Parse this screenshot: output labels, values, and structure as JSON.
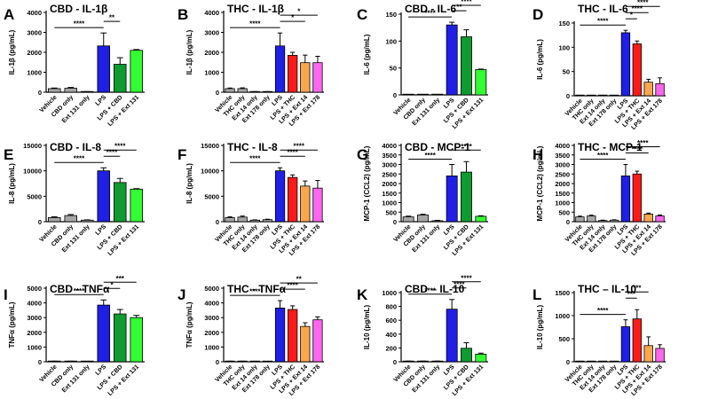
{
  "figure": {
    "description_free": true
  },
  "chart_data": [
    {
      "panel_letter": "A",
      "type": "bar",
      "title": "CBD - IL-1β",
      "ylabel": "IL-1β (pg/mL)",
      "ylim": [
        0,
        4000
      ],
      "yticks": [
        "0",
        "1000",
        "2000",
        "3000",
        "4000"
      ],
      "ytick_values": [
        0,
        1000,
        2000,
        3000,
        4000
      ],
      "categories": [
        "Vehicle",
        "CBD only",
        "Ext 131 only",
        "LPS",
        "LPS + CBD",
        "LPS + Ext 131"
      ],
      "values": [
        180,
        200,
        20,
        2320,
        1400,
        2100
      ],
      "errors": [
        30,
        40,
        10,
        650,
        330,
        40
      ],
      "colors": [
        "#a6a6a6",
        "#a6a6a6",
        "#a6a6a6",
        "#1f1fe6",
        "#0e9b2f",
        "#33ff33"
      ],
      "significance": [
        {
          "from": 0,
          "to": 3,
          "label": "****"
        },
        {
          "from": 3,
          "to": 4,
          "label": "**"
        }
      ]
    },
    {
      "panel_letter": "B",
      "type": "bar",
      "title": "THC - IL-1β",
      "ylabel": "IL-1β (pg/mL)",
      "ylim": [
        0,
        4000
      ],
      "yticks": [
        "0",
        "1000",
        "2000",
        "3000",
        "4000"
      ],
      "ytick_values": [
        0,
        1000,
        2000,
        3000,
        4000
      ],
      "categories": [
        "Vehicle",
        "THC only",
        "Ext 14 only",
        "Ext 178 only",
        "LPS",
        "LPS + THC",
        "LPS + Ext 14",
        "LPS + Ext 178"
      ],
      "values": [
        180,
        180,
        20,
        20,
        2320,
        1850,
        1480,
        1480
      ],
      "errors": [
        30,
        40,
        10,
        10,
        650,
        150,
        380,
        320
      ],
      "colors": [
        "#a6a6a6",
        "#a6a6a6",
        "#a6a6a6",
        "#a6a6a6",
        "#1f1fe6",
        "#ff1a1a",
        "#ffa64d",
        "#ff66ee"
      ],
      "significance": [
        {
          "from": 0,
          "to": 4,
          "label": "****"
        },
        {
          "from": 4,
          "to": 6,
          "label": "*"
        },
        {
          "from": 4,
          "to": 7,
          "label": "*"
        }
      ]
    },
    {
      "panel_letter": "C",
      "type": "bar",
      "title": "CBD - IL-6",
      "ylabel": "IL-6 (pg/mL)",
      "ylim": [
        0,
        150
      ],
      "yticks": [
        "0",
        "50",
        "100",
        "150"
      ],
      "ytick_values": [
        0,
        50,
        100,
        150
      ],
      "categories": [
        "Vehicle",
        "CBD only",
        "Ext 131 only",
        "LPS",
        "LPS + CBD",
        "LPS + Ext 131"
      ],
      "values": [
        0.5,
        0.5,
        0.5,
        130,
        108,
        47
      ],
      "errors": [
        0,
        0,
        0,
        5,
        13,
        1
      ],
      "colors": [
        "#a6a6a6",
        "#a6a6a6",
        "#a6a6a6",
        "#1f1fe6",
        "#0e9b2f",
        "#33ff33"
      ],
      "significance": [
        {
          "from": 0,
          "to": 3,
          "label": "****"
        },
        {
          "from": 3,
          "to": 4,
          "label": "**"
        },
        {
          "from": 3,
          "to": 5,
          "label": "****"
        }
      ]
    },
    {
      "panel_letter": "D",
      "type": "bar",
      "title": "THC - IL-6",
      "ylabel": "IL-6 (pg/mL)",
      "ylim": [
        0,
        150
      ],
      "yticks": [
        "0",
        "50",
        "100",
        "150"
      ],
      "ytick_values": [
        0,
        50,
        100,
        150
      ],
      "categories": [
        "Vehicle",
        "THC only",
        "Ext 14 only",
        "Ext 178 only",
        "LPS",
        "LPS + THC",
        "LPS + Ext 14",
        "LPS + Ext 178"
      ],
      "values": [
        0.5,
        0.5,
        0.5,
        0.5,
        130,
        107,
        28,
        25
      ],
      "errors": [
        0,
        0,
        0,
        0,
        5,
        6,
        6,
        12
      ],
      "colors": [
        "#a6a6a6",
        "#a6a6a6",
        "#a6a6a6",
        "#a6a6a6",
        "#1f1fe6",
        "#ff1a1a",
        "#ffa64d",
        "#ff66ee"
      ],
      "significance": [
        {
          "from": 0,
          "to": 4,
          "label": "****"
        },
        {
          "from": 4,
          "to": 5,
          "label": "*"
        },
        {
          "from": 4,
          "to": 6,
          "label": "****"
        },
        {
          "from": 4,
          "to": 7,
          "label": "****"
        }
      ]
    },
    {
      "panel_letter": "E",
      "type": "bar",
      "title": "CBD - IL-8",
      "ylabel": "IL-8 (pg/mL)",
      "ylim": [
        0,
        15000
      ],
      "yticks": [
        "0",
        "5000",
        "10000",
        "15000"
      ],
      "ytick_values": [
        0,
        5000,
        10000,
        15000
      ],
      "categories": [
        "Vehicle",
        "CBD only",
        "Ext 131 only",
        "LPS",
        "LPS + CBD",
        "LPS + Ext 131"
      ],
      "values": [
        800,
        1200,
        300,
        10000,
        7700,
        6400
      ],
      "errors": [
        150,
        200,
        60,
        600,
        800,
        100
      ],
      "colors": [
        "#a6a6a6",
        "#a6a6a6",
        "#a6a6a6",
        "#1f1fe6",
        "#0e9b2f",
        "#33ff33"
      ],
      "significance": [
        {
          "from": 0,
          "to": 3,
          "label": "****"
        },
        {
          "from": 3,
          "to": 4,
          "label": "****"
        },
        {
          "from": 3,
          "to": 5,
          "label": "****"
        }
      ]
    },
    {
      "panel_letter": "F",
      "type": "bar",
      "title": "THC - IL-8",
      "ylabel": "IL-8 (pg/mL)",
      "ylim": [
        0,
        15000
      ],
      "yticks": [
        "0",
        "5000",
        "10000",
        "15000"
      ],
      "ytick_values": [
        0,
        5000,
        10000,
        15000
      ],
      "categories": [
        "Vehicle",
        "THC only",
        "Ext 14 only",
        "Ext 178 only",
        "LPS",
        "LPS + THC",
        "LPS + Ext 14",
        "LPS + Ext 178"
      ],
      "values": [
        800,
        900,
        300,
        400,
        10000,
        8700,
        7000,
        6600
      ],
      "errors": [
        150,
        200,
        60,
        80,
        600,
        500,
        1000,
        1500
      ],
      "colors": [
        "#a6a6a6",
        "#a6a6a6",
        "#a6a6a6",
        "#a6a6a6",
        "#1f1fe6",
        "#ff1a1a",
        "#ffa64d",
        "#ff66ee"
      ],
      "significance": [
        {
          "from": 0,
          "to": 4,
          "label": "****"
        },
        {
          "from": 4,
          "to": 6,
          "label": "****"
        },
        {
          "from": 4,
          "to": 7,
          "label": "****"
        }
      ]
    },
    {
      "panel_letter": "G",
      "type": "bar",
      "title": "CBD - MCP-1",
      "ylabel": "MCP-1 (CCL2) (pg/mL)",
      "ylim": [
        0,
        4000
      ],
      "yticks": [
        "0",
        "500",
        "1000",
        "1500",
        "2000",
        "2500",
        "3000",
        "3500",
        "4000"
      ],
      "ytick_values": [
        0,
        500,
        1000,
        1500,
        2000,
        2500,
        3000,
        3500,
        4000
      ],
      "categories": [
        "Vehicle",
        "CBD only",
        "Ext 131 only",
        "LPS",
        "LPS + CBD",
        "LPS + Ext 131"
      ],
      "values": [
        250,
        350,
        50,
        2400,
        2600,
        280
      ],
      "errors": [
        40,
        40,
        20,
        600,
        550,
        30
      ],
      "colors": [
        "#a6a6a6",
        "#a6a6a6",
        "#a6a6a6",
        "#1f1fe6",
        "#0e9b2f",
        "#33ff33"
      ],
      "significance": [
        {
          "from": 0,
          "to": 3,
          "label": "****"
        },
        {
          "from": 3,
          "to": 5,
          "label": "****"
        }
      ]
    },
    {
      "panel_letter": "H",
      "type": "bar",
      "title": "THC - MCP-1",
      "ylabel": "MCP-1 (CCL2) (pg/mL)",
      "ylim": [
        0,
        4000
      ],
      "yticks": [
        "0",
        "500",
        "1000",
        "1500",
        "2000",
        "2500",
        "3000",
        "3500",
        "4000"
      ],
      "ytick_values": [
        0,
        500,
        1000,
        1500,
        2000,
        2500,
        3000,
        3500,
        4000
      ],
      "categories": [
        "Vehicle",
        "THC only",
        "Ext 14 only",
        "Ext 178 only",
        "LPS",
        "LPS + THC",
        "LPS + Ext 14",
        "LPS + Ext 178"
      ],
      "values": [
        250,
        300,
        60,
        80,
        2400,
        2500,
        400,
        300
      ],
      "errors": [
        40,
        40,
        20,
        20,
        600,
        150,
        50,
        50
      ],
      "colors": [
        "#a6a6a6",
        "#a6a6a6",
        "#a6a6a6",
        "#a6a6a6",
        "#1f1fe6",
        "#ff1a1a",
        "#ffa64d",
        "#ff66ee"
      ],
      "significance": [
        {
          "from": 0,
          "to": 4,
          "label": "****"
        },
        {
          "from": 4,
          "to": 6,
          "label": "****"
        },
        {
          "from": 4,
          "to": 7,
          "label": "****"
        }
      ]
    },
    {
      "panel_letter": "I",
      "type": "bar",
      "title": "CBD - TNFα",
      "ylabel": "TNFα (pg/mL)",
      "ylim": [
        0,
        5000
      ],
      "yticks": [
        "0",
        "1000",
        "2000",
        "3000",
        "4000",
        "5000"
      ],
      "ytick_values": [
        0,
        1000,
        2000,
        3000,
        4000,
        5000
      ],
      "categories": [
        "Vehicle",
        "CBD only",
        "Ext 131 only",
        "LPS",
        "LPS + CBD",
        "LPS + Ext 131"
      ],
      "values": [
        30,
        30,
        20,
        3850,
        3250,
        3000
      ],
      "errors": [
        10,
        10,
        10,
        350,
        300,
        150
      ],
      "colors": [
        "#a6a6a6",
        "#a6a6a6",
        "#a6a6a6",
        "#1f1fe6",
        "#0e9b2f",
        "#33ff33"
      ],
      "significance": [
        {
          "from": 0,
          "to": 3,
          "label": "****"
        },
        {
          "from": 3,
          "to": 4,
          "label": "*"
        },
        {
          "from": 3,
          "to": 5,
          "label": "***"
        }
      ]
    },
    {
      "panel_letter": "J",
      "type": "bar",
      "title": "THC - TNFα",
      "ylabel": "TNFα (pg/mL)",
      "ylim": [
        0,
        5000
      ],
      "yticks": [
        "0",
        "1000",
        "2000",
        "3000",
        "4000",
        "5000"
      ],
      "ytick_values": [
        0,
        1000,
        2000,
        3000,
        4000,
        5000
      ],
      "categories": [
        "Vehicle",
        "THC only",
        "Ext 14 only",
        "Ext 178 only",
        "LPS",
        "LPS + THC",
        "LPS + Ext 14",
        "LPS + Ext 178"
      ],
      "values": [
        30,
        30,
        20,
        20,
        3650,
        3550,
        2400,
        2850
      ],
      "errors": [
        10,
        10,
        10,
        10,
        500,
        250,
        250,
        200
      ],
      "colors": [
        "#a6a6a6",
        "#a6a6a6",
        "#a6a6a6",
        "#a6a6a6",
        "#1f1fe6",
        "#ff1a1a",
        "#ffa64d",
        "#ff66ee"
      ],
      "significance": [
        {
          "from": 0,
          "to": 4,
          "label": "****"
        },
        {
          "from": 4,
          "to": 6,
          "label": "****"
        },
        {
          "from": 4,
          "to": 7,
          "label": "**"
        }
      ]
    },
    {
      "panel_letter": "K",
      "type": "bar",
      "title": "CBD – IL-10",
      "ylabel": "IL-10 (pg/mL)",
      "ylim": [
        0,
        1000
      ],
      "yticks": [
        "0",
        "200",
        "400",
        "600",
        "800",
        "1000"
      ],
      "ytick_values": [
        0,
        200,
        400,
        600,
        800,
        1000
      ],
      "categories": [
        "Vehicle",
        "CBD only",
        "Ext 131 only",
        "LPS",
        "LPS + CBD",
        "LPS + Ext 131"
      ],
      "values": [
        5,
        5,
        5,
        760,
        195,
        110
      ],
      "errors": [
        5,
        5,
        5,
        140,
        80,
        15
      ],
      "colors": [
        "#a6a6a6",
        "#a6a6a6",
        "#a6a6a6",
        "#1f1fe6",
        "#0e9b2f",
        "#33ff33"
      ],
      "significance": [
        {
          "from": 0,
          "to": 3,
          "label": "****"
        },
        {
          "from": 3,
          "to": 4,
          "label": "****"
        },
        {
          "from": 3,
          "to": 5,
          "label": "****"
        }
      ]
    },
    {
      "panel_letter": "L",
      "type": "bar",
      "title": "THC – IL-10",
      "ylabel": "IL-10 (pg/mL)",
      "ylim": [
        0,
        1500
      ],
      "yticks": [
        "0",
        "500",
        "1000",
        "1500"
      ],
      "ytick_values": [
        0,
        500,
        1000,
        1500
      ],
      "categories": [
        "Vehicle",
        "THC only",
        "Ext 14 only",
        "Ext 178 only",
        "LPS",
        "LPS + THC",
        "LPS + Ext 14",
        "LPS + Ext 178"
      ],
      "values": [
        5,
        5,
        5,
        5,
        760,
        930,
        350,
        290
      ],
      "errors": [
        5,
        5,
        5,
        5,
        150,
        200,
        190,
        80
      ],
      "colors": [
        "#a6a6a6",
        "#a6a6a6",
        "#a6a6a6",
        "#a6a6a6",
        "#1f1fe6",
        "#ff1a1a",
        "#ffa64d",
        "#ff66ee"
      ],
      "significance": [
        {
          "from": 0,
          "to": 4,
          "label": "****"
        },
        {
          "from": 4,
          "to": 5,
          "label": "***"
        },
        {
          "from": 4,
          "to": 6,
          "label": "***"
        }
      ]
    }
  ]
}
